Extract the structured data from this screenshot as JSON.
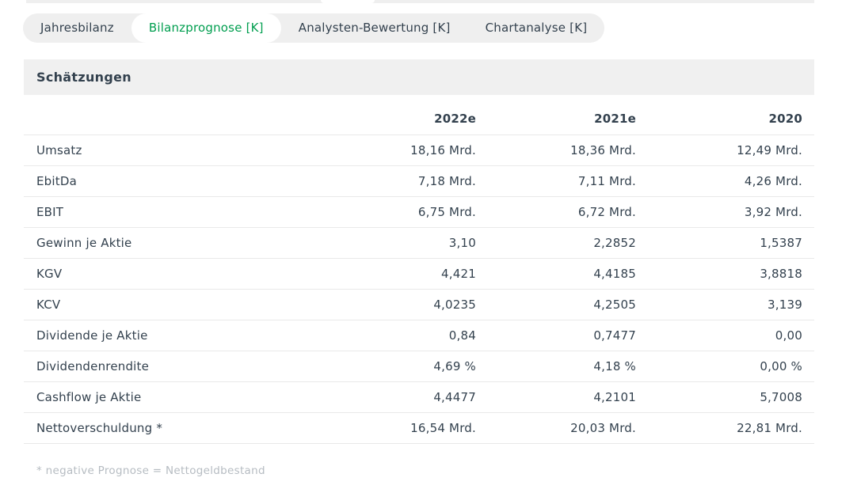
{
  "tab_bar": {
    "tabs": [
      {
        "label": "Jahresbilanz",
        "active": false
      },
      {
        "label": "Bilanzprognose [K]",
        "active": true
      },
      {
        "label": "Analysten-Bewertung [K]",
        "active": false
      },
      {
        "label": "Chartanalyse [K]",
        "active": false
      }
    ]
  },
  "section": {
    "title": "Schätzungen"
  },
  "chart_data": {
    "type": "table",
    "title": "Schätzungen",
    "columns": [
      "2022e",
      "2021e",
      "2020"
    ],
    "rows": [
      {
        "label": "Umsatz",
        "values": [
          "18,16 Mrd.",
          "18,36 Mrd.",
          "12,49 Mrd."
        ]
      },
      {
        "label": "EbitDa",
        "values": [
          "7,18 Mrd.",
          "7,11 Mrd.",
          "4,26 Mrd."
        ]
      },
      {
        "label": "EBIT",
        "values": [
          "6,75 Mrd.",
          "6,72 Mrd.",
          "3,92 Mrd."
        ]
      },
      {
        "label": "Gewinn je Aktie",
        "values": [
          "3,10",
          "2,2852",
          "1,5387"
        ]
      },
      {
        "label": "KGV",
        "values": [
          "4,421",
          "4,4185",
          "3,8818"
        ]
      },
      {
        "label": "KCV",
        "values": [
          "4,0235",
          "4,2505",
          "3,139"
        ]
      },
      {
        "label": "Dividende je Aktie",
        "values": [
          "0,84",
          "0,7477",
          "0,00"
        ]
      },
      {
        "label": "Dividendenrendite",
        "values": [
          "4,69 %",
          "4,18 %",
          "0,00 %"
        ]
      },
      {
        "label": "Cashflow je Aktie",
        "values": [
          "4,4477",
          "4,2101",
          "5,7008"
        ]
      },
      {
        "label": "Nettoverschuldung *",
        "values": [
          "16,54 Mrd.",
          "20,03 Mrd.",
          "22,81 Mrd."
        ]
      }
    ]
  },
  "footnote": "* negative Prognose = Nettogeldbestand",
  "colors": {
    "accent_green": "#009e4f",
    "text_dark": "#33414e",
    "bar_gray": "#efefef",
    "border_gray": "#e9e9e9",
    "muted_gray": "#b6bcc2"
  }
}
